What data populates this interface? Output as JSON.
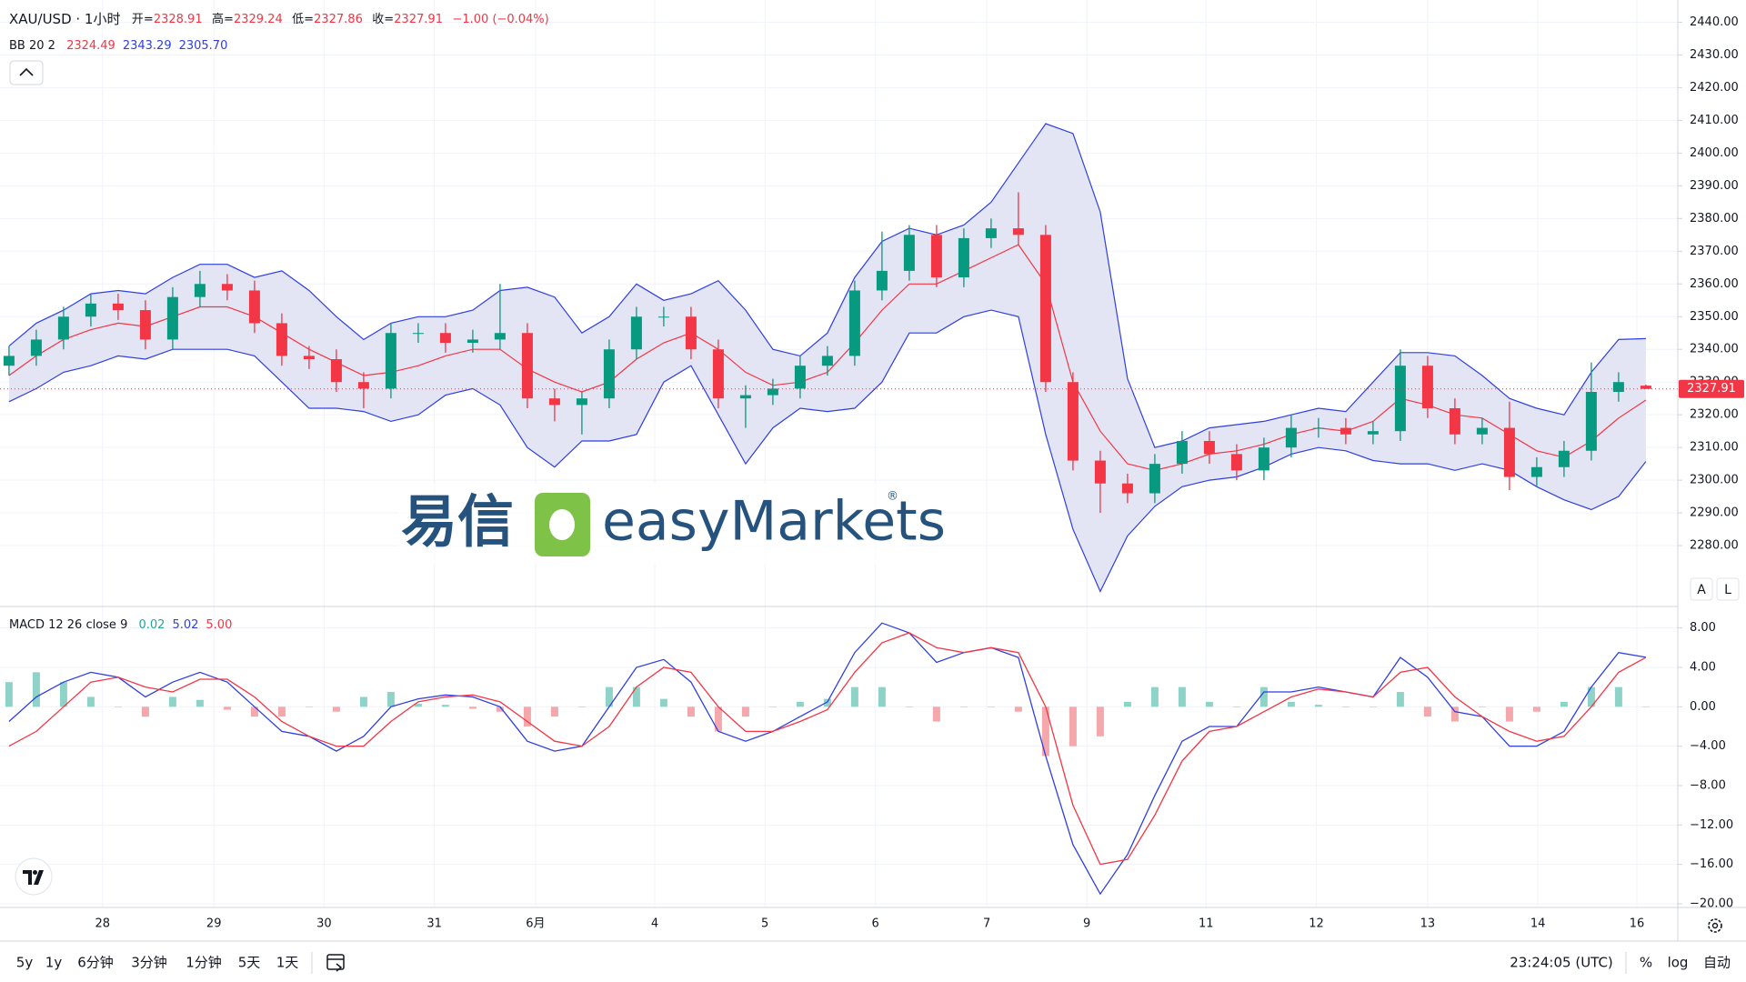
{
  "header": {
    "symbol": "XAU/USD · 1小时",
    "ohlc_labels": [
      "开=",
      "高=",
      "低=",
      "收="
    ],
    "change": "−1.00 (−0.04%)"
  },
  "watermark": {
    "cn": "易信",
    "en": "easyMarkets",
    "mark": "®"
  },
  "chart_data": [
    {
      "type": "candlestick",
      "indicator": "BB 20 2",
      "legend_values": [
        "2324.49",
        "2343.29",
        "2305.70"
      ],
      "up_color": "#089981",
      "down_color": "#f23645",
      "band_color": "#e3e4f4",
      "grid": true,
      "xlim": [
        -0.33,
        61.17
      ],
      "xticks": [
        {
          "value": 3.43,
          "label": "28"
        },
        {
          "value": 7.51,
          "label": "29"
        },
        {
          "value": 11.55,
          "label": "30"
        },
        {
          "value": 15.59,
          "label": "31"
        },
        {
          "value": 19.3,
          "label": "6月"
        },
        {
          "value": 23.67,
          "label": "4"
        },
        {
          "value": 27.71,
          "label": "5"
        },
        {
          "value": 31.76,
          "label": "6"
        },
        {
          "value": 35.84,
          "label": "7"
        },
        {
          "value": 39.51,
          "label": "9"
        },
        {
          "value": 43.88,
          "label": "11"
        },
        {
          "value": 47.92,
          "label": "12"
        },
        {
          "value": 52.0,
          "label": "13"
        },
        {
          "value": 56.04,
          "label": "14"
        },
        {
          "value": 59.67,
          "label": "16"
        }
      ],
      "ylim": [
        2261.4,
        2446.8
      ],
      "yticks": [
        {
          "value": 2280,
          "label": "2280.00"
        },
        {
          "value": 2290,
          "label": "2290.00"
        },
        {
          "value": 2300,
          "label": "2300.00"
        },
        {
          "value": 2310,
          "label": "2310.00"
        },
        {
          "value": 2320,
          "label": "2320.00"
        },
        {
          "value": 2330,
          "label": "2330.00"
        },
        {
          "value": 2340,
          "label": "2340.00"
        },
        {
          "value": 2350,
          "label": "2350.00"
        },
        {
          "value": 2360,
          "label": "2360.00"
        },
        {
          "value": 2370,
          "label": "2370.00"
        },
        {
          "value": 2380,
          "label": "2380.00"
        },
        {
          "value": 2390,
          "label": "2390.00"
        },
        {
          "value": 2400,
          "label": "2400.00"
        },
        {
          "value": 2410,
          "label": "2410.00"
        },
        {
          "value": 2420,
          "label": "2420.00"
        },
        {
          "value": 2430,
          "label": "2430.00"
        },
        {
          "value": 2440,
          "label": "2440.00"
        }
      ],
      "open": [
        2335,
        2338,
        2343,
        2350,
        2354,
        2352,
        2343,
        2356,
        2360,
        2358,
        2348,
        2338,
        2337,
        2330,
        2328,
        2345,
        2345,
        2342,
        2343,
        2345,
        2325,
        2323,
        2325,
        2340,
        2350,
        2350,
        2340,
        2325,
        2326,
        2328,
        2335,
        2338,
        2358,
        2364,
        2375,
        2362,
        2374,
        2377,
        2375,
        2330,
        2306,
        2299,
        2296,
        2305,
        2312,
        2308,
        2303,
        2310,
        2316,
        2316,
        2314,
        2315,
        2335,
        2322,
        2314,
        2316,
        2301,
        2304,
        2309,
        2327,
        2328.91
      ],
      "high": [
        2341,
        2346,
        2353,
        2357,
        2357,
        2355,
        2359,
        2364,
        2363,
        2361,
        2351,
        2341,
        2340,
        2333,
        2348,
        2348,
        2348,
        2346,
        2360,
        2348,
        2328,
        2327,
        2343,
        2353,
        2353,
        2353,
        2343,
        2329,
        2331,
        2338,
        2341,
        2361,
        2376,
        2378,
        2378,
        2377,
        2380,
        2388,
        2378,
        2333,
        2309,
        2302,
        2308,
        2315,
        2315,
        2311,
        2313,
        2320,
        2319,
        2319,
        2318,
        2340,
        2338,
        2325,
        2319,
        2324,
        2307,
        2312,
        2336,
        2333,
        2329.24
      ],
      "low": [
        2332,
        2335,
        2340,
        2347,
        2349,
        2340,
        2340,
        2353,
        2355,
        2345,
        2335,
        2334,
        2327,
        2322,
        2325,
        2342,
        2339,
        2339,
        2340,
        2322,
        2318,
        2314,
        2322,
        2337,
        2347,
        2337,
        2322,
        2316,
        2323,
        2325,
        2332,
        2335,
        2355,
        2361,
        2359,
        2359,
        2371,
        2372,
        2327,
        2303,
        2290,
        2293,
        2293,
        2302,
        2305,
        2300,
        2300,
        2307,
        2313,
        2311,
        2311,
        2312,
        2319,
        2311,
        2311,
        2297,
        2298,
        2301,
        2306,
        2324,
        2327.86
      ],
      "close": [
        2338,
        2343,
        2350,
        2354,
        2352,
        2343,
        2356,
        2360,
        2358,
        2348,
        2338,
        2337,
        2330,
        2328,
        2345,
        2345,
        2342,
        2343,
        2345,
        2325,
        2323,
        2325,
        2340,
        2350,
        2350,
        2340,
        2325,
        2326,
        2328,
        2335,
        2338,
        2358,
        2364,
        2375,
        2362,
        2374,
        2377,
        2375,
        2330,
        2306,
        2299,
        2296,
        2305,
        2312,
        2308,
        2303,
        2310,
        2316,
        2316,
        2314,
        2315,
        2335,
        2322,
        2314,
        2316,
        2301,
        2304,
        2309,
        2327,
        2330,
        2327.91
      ],
      "price_color": "#f23645",
      "series": [
        {
          "color": "#f23645",
          "values": [
            2332,
            2338,
            2343,
            2346,
            2348,
            2347,
            2350,
            2353,
            2353,
            2350,
            2345,
            2340,
            2336,
            2332,
            2333,
            2335,
            2338,
            2340,
            2340,
            2334,
            2330,
            2327,
            2330,
            2337,
            2342,
            2345,
            2340,
            2333,
            2329,
            2330,
            2333,
            2342,
            2352,
            2360,
            2360,
            2364,
            2368,
            2372,
            2360,
            2330,
            2315,
            2305,
            2303,
            2305,
            2308,
            2309,
            2311,
            2314,
            2316,
            2315,
            2318,
            2325,
            2323,
            2320,
            2319,
            2314,
            2309,
            2307,
            2312,
            2319,
            2324.49
          ]
        },
        {
          "color": "#2f3fe0",
          "values": [
            2341,
            2348,
            2352,
            2357,
            2358,
            2357,
            2362,
            2366,
            2366,
            2362,
            2364,
            2358,
            2350,
            2343,
            2348,
            2350,
            2350,
            2352,
            2358,
            2359,
            2356,
            2345,
            2350,
            2360,
            2355,
            2357,
            2361,
            2352,
            2340,
            2338,
            2345,
            2362,
            2373,
            2377,
            2375,
            2378,
            2385,
            2397,
            2409,
            2406,
            2382,
            2331,
            2310,
            2312,
            2316,
            2317,
            2318,
            2320,
            2322,
            2321,
            2330,
            2339,
            2339,
            2338,
            2332,
            2325,
            2322,
            2320,
            2333,
            2343,
            2343.29
          ]
        },
        {
          "color": "#2f3fe0",
          "values": [
            2324,
            2328,
            2333,
            2335,
            2338,
            2337,
            2340,
            2340,
            2340,
            2338,
            2330,
            2322,
            2322,
            2321,
            2318,
            2320,
            2326,
            2328,
            2323,
            2310,
            2304,
            2312,
            2312,
            2314,
            2330,
            2335,
            2320,
            2305,
            2316,
            2322,
            2321,
            2322,
            2330,
            2345,
            2345,
            2350,
            2352,
            2350,
            2314,
            2285,
            2266,
            2283,
            2292,
            2298,
            2300,
            2301,
            2304,
            2308,
            2310,
            2309,
            2306,
            2305,
            2305,
            2303,
            2305,
            2303,
            2298,
            2294,
            2291,
            2295,
            2305.7
          ]
        }
      ]
    },
    {
      "type": "macd",
      "indicator": "MACD 12 26 close 9",
      "legend_values": [
        "0.02",
        "5.02",
        "5.00"
      ],
      "grid": true,
      "xlim": [
        -0.33,
        61.17
      ],
      "ylim": [
        -20.37,
        10.18
      ],
      "yticks": [
        {
          "value": -20,
          "label": "−20.00"
        },
        {
          "value": -16,
          "label": "−16.00"
        },
        {
          "value": -12,
          "label": "−12.00"
        },
        {
          "value": -8,
          "label": "−8.00"
        },
        {
          "value": -4,
          "label": "−4.00"
        },
        {
          "value": 0,
          "label": "0.00"
        },
        {
          "value": 4,
          "label": "4.00"
        },
        {
          "value": 8,
          "label": "8.00"
        }
      ],
      "histogram": {
        "up_color": "#8fd3c8",
        "down_color": "#f5a8ac",
        "color": "#26a69a",
        "values": [
          2.5,
          3.5,
          2.5,
          1,
          0,
          -1,
          1,
          0.7,
          -0.3,
          -1,
          -1,
          0,
          -0.5,
          1,
          1.5,
          0.3,
          0.2,
          -0.2,
          -0.5,
          -2,
          -1,
          0,
          2,
          2,
          0.8,
          -1,
          -2.5,
          -1,
          0,
          0.5,
          0.8,
          2,
          2,
          0,
          -1.5,
          0,
          0,
          -0.5,
          -5,
          -4,
          -3,
          0.5,
          2,
          2,
          0.5,
          0,
          2,
          0.5,
          0.2,
          0,
          0,
          1.5,
          -1,
          -1.5,
          0,
          -1.5,
          -0.5,
          0.5,
          2,
          2,
          0.02
        ]
      },
      "series": [
        {
          "color": "#2f3fe0",
          "values": [
            -1.5,
            1,
            2.5,
            3.5,
            3,
            1,
            2.5,
            3.5,
            2.5,
            0,
            -2.5,
            -3,
            -4.5,
            -3,
            0,
            0.8,
            1.2,
            1,
            0,
            -3.5,
            -4.5,
            -4,
            0,
            4,
            4.8,
            2.5,
            -2.5,
            -3.5,
            -2.5,
            -1,
            0.5,
            5.5,
            8.5,
            7.5,
            4.5,
            5.5,
            6,
            5,
            -5,
            -14,
            -19,
            -15,
            -9,
            -3.5,
            -2,
            -2,
            1.5,
            1.5,
            2,
            1.5,
            1,
            5,
            3,
            -0.5,
            -1,
            -4,
            -4,
            -2.5,
            2,
            5.5,
            5.02
          ]
        },
        {
          "color": "#f23645",
          "values": [
            -4,
            -2.5,
            0,
            2.5,
            3,
            2,
            1.5,
            2.8,
            2.8,
            1,
            -1.5,
            -3,
            -4,
            -4,
            -1.5,
            0.5,
            1,
            1.2,
            0.5,
            -1.5,
            -3.5,
            -4,
            -2,
            2,
            4,
            3.5,
            0,
            -2.5,
            -2.5,
            -1.5,
            -0.3,
            3.5,
            6.5,
            7.5,
            6,
            5.5,
            6,
            5.5,
            0,
            -10,
            -16,
            -15.5,
            -11,
            -5.5,
            -2.5,
            -2,
            -0.5,
            1,
            1.8,
            1.5,
            1,
            3.5,
            4,
            1,
            -1,
            -2.5,
            -3.5,
            -3,
            0,
            3.5,
            5
          ]
        }
      ]
    }
  ],
  "scale_buttons": [
    "A",
    "L"
  ],
  "toolbar": {
    "ranges": [
      "5y",
      "1y",
      "6分钟",
      "3分钟",
      "1分钟",
      "5天",
      "1天"
    ],
    "clock": "23:24:05 (UTC)",
    "options": [
      "%",
      "log",
      "自动"
    ]
  }
}
